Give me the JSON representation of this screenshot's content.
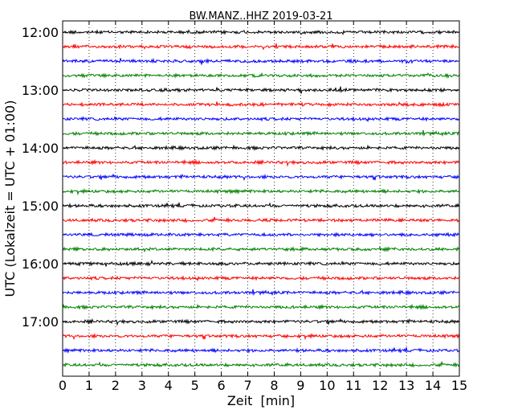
{
  "chart_data": {
    "type": "line",
    "title": "BW.MANZ..HHZ 2019-03-21",
    "xlabel": "Zeit  [min]",
    "ylabel": "UTC (Lokalzeit = UTC + 01:00)",
    "xlim": [
      0,
      15
    ],
    "x_ticks": [
      "0",
      "1",
      "2",
      "3",
      "4",
      "5",
      "6",
      "7",
      "8",
      "9",
      "10",
      "11",
      "12",
      "13",
      "14",
      "15"
    ],
    "y_ticks": [
      "12:00",
      "13:00",
      "14:00",
      "15:00",
      "16:00",
      "17:00"
    ],
    "trace_interval_minutes": 15,
    "trace_count": 24,
    "start_time": "12:00",
    "colors": [
      "#000000",
      "#ff0000",
      "#0000ff",
      "#008000"
    ],
    "grid": "vertical dotted",
    "legend": "none"
  }
}
